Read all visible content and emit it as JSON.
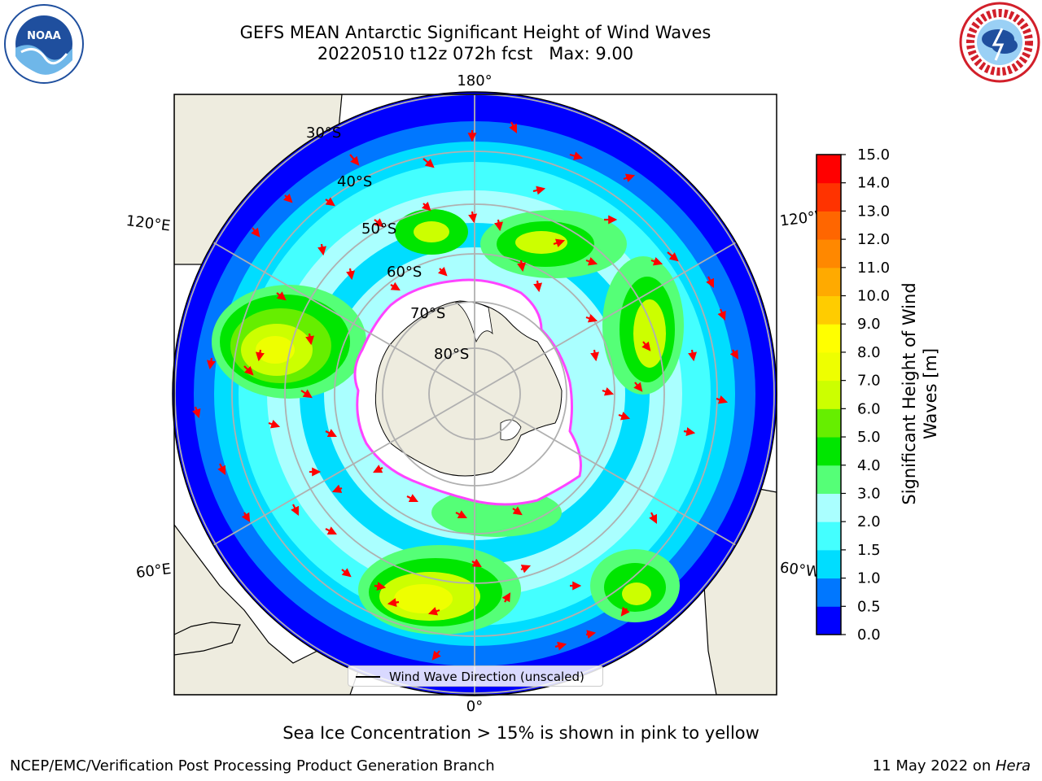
{
  "header": {
    "title_line1": "GEFS MEAN Antarctic Significant Height of Wind Waves",
    "title_line2": "20220510 t12z 072h fcst   Max: 9.00"
  },
  "logos": {
    "left": {
      "icon": "noaa-logo",
      "text": "NOAA"
    },
    "right": {
      "icon": "national-weather-service-logo"
    }
  },
  "map": {
    "projection": "south-polar-stereographic",
    "longitude_labels": {
      "top": "180°",
      "bottom": "0°",
      "upper_left": "120°E",
      "upper_right": "120°W",
      "lower_left": "60°E",
      "lower_right": "60°W"
    },
    "latitude_labels": [
      "30°S",
      "40°S",
      "50°S",
      "60°S",
      "70°S",
      "80°S"
    ],
    "colors": {
      "land": "#eeecdf",
      "ice_sheet": "#ffffff",
      "sea_ice_edge": "#ff44ff",
      "wave_direction_arrow": "#ff0000",
      "graticule": "#b0b0b0"
    }
  },
  "legend": {
    "entry": "Wind Wave Direction (unscaled)"
  },
  "colorbar": {
    "label_line1": "Significant Height of Wind",
    "label_line2": "Waves [m]",
    "ticks": [
      "0.0",
      "0.5",
      "1.0",
      "1.5",
      "2.0",
      "3.0",
      "4.0",
      "5.0",
      "6.0",
      "7.0",
      "8.0",
      "9.0",
      "10.0",
      "11.0",
      "12.0",
      "13.0",
      "14.0",
      "15.0"
    ],
    "colors": [
      "#0000ff",
      "#0077ff",
      "#00ddff",
      "#44ffff",
      "#aaffff",
      "#55ff77",
      "#00e600",
      "#66ee00",
      "#ccff00",
      "#eeff00",
      "#ffff00",
      "#ffcc00",
      "#ffaa00",
      "#ff8800",
      "#ff6600",
      "#ff3300",
      "#ff0000"
    ]
  },
  "caption": "Sea Ice Concentration > 15% is shown in pink to yellow",
  "footer": {
    "left": "NCEP/EMC/Verification Post Processing Product Generation Branch",
    "date": "11 May 2022 on ",
    "machine": "Hera"
  }
}
